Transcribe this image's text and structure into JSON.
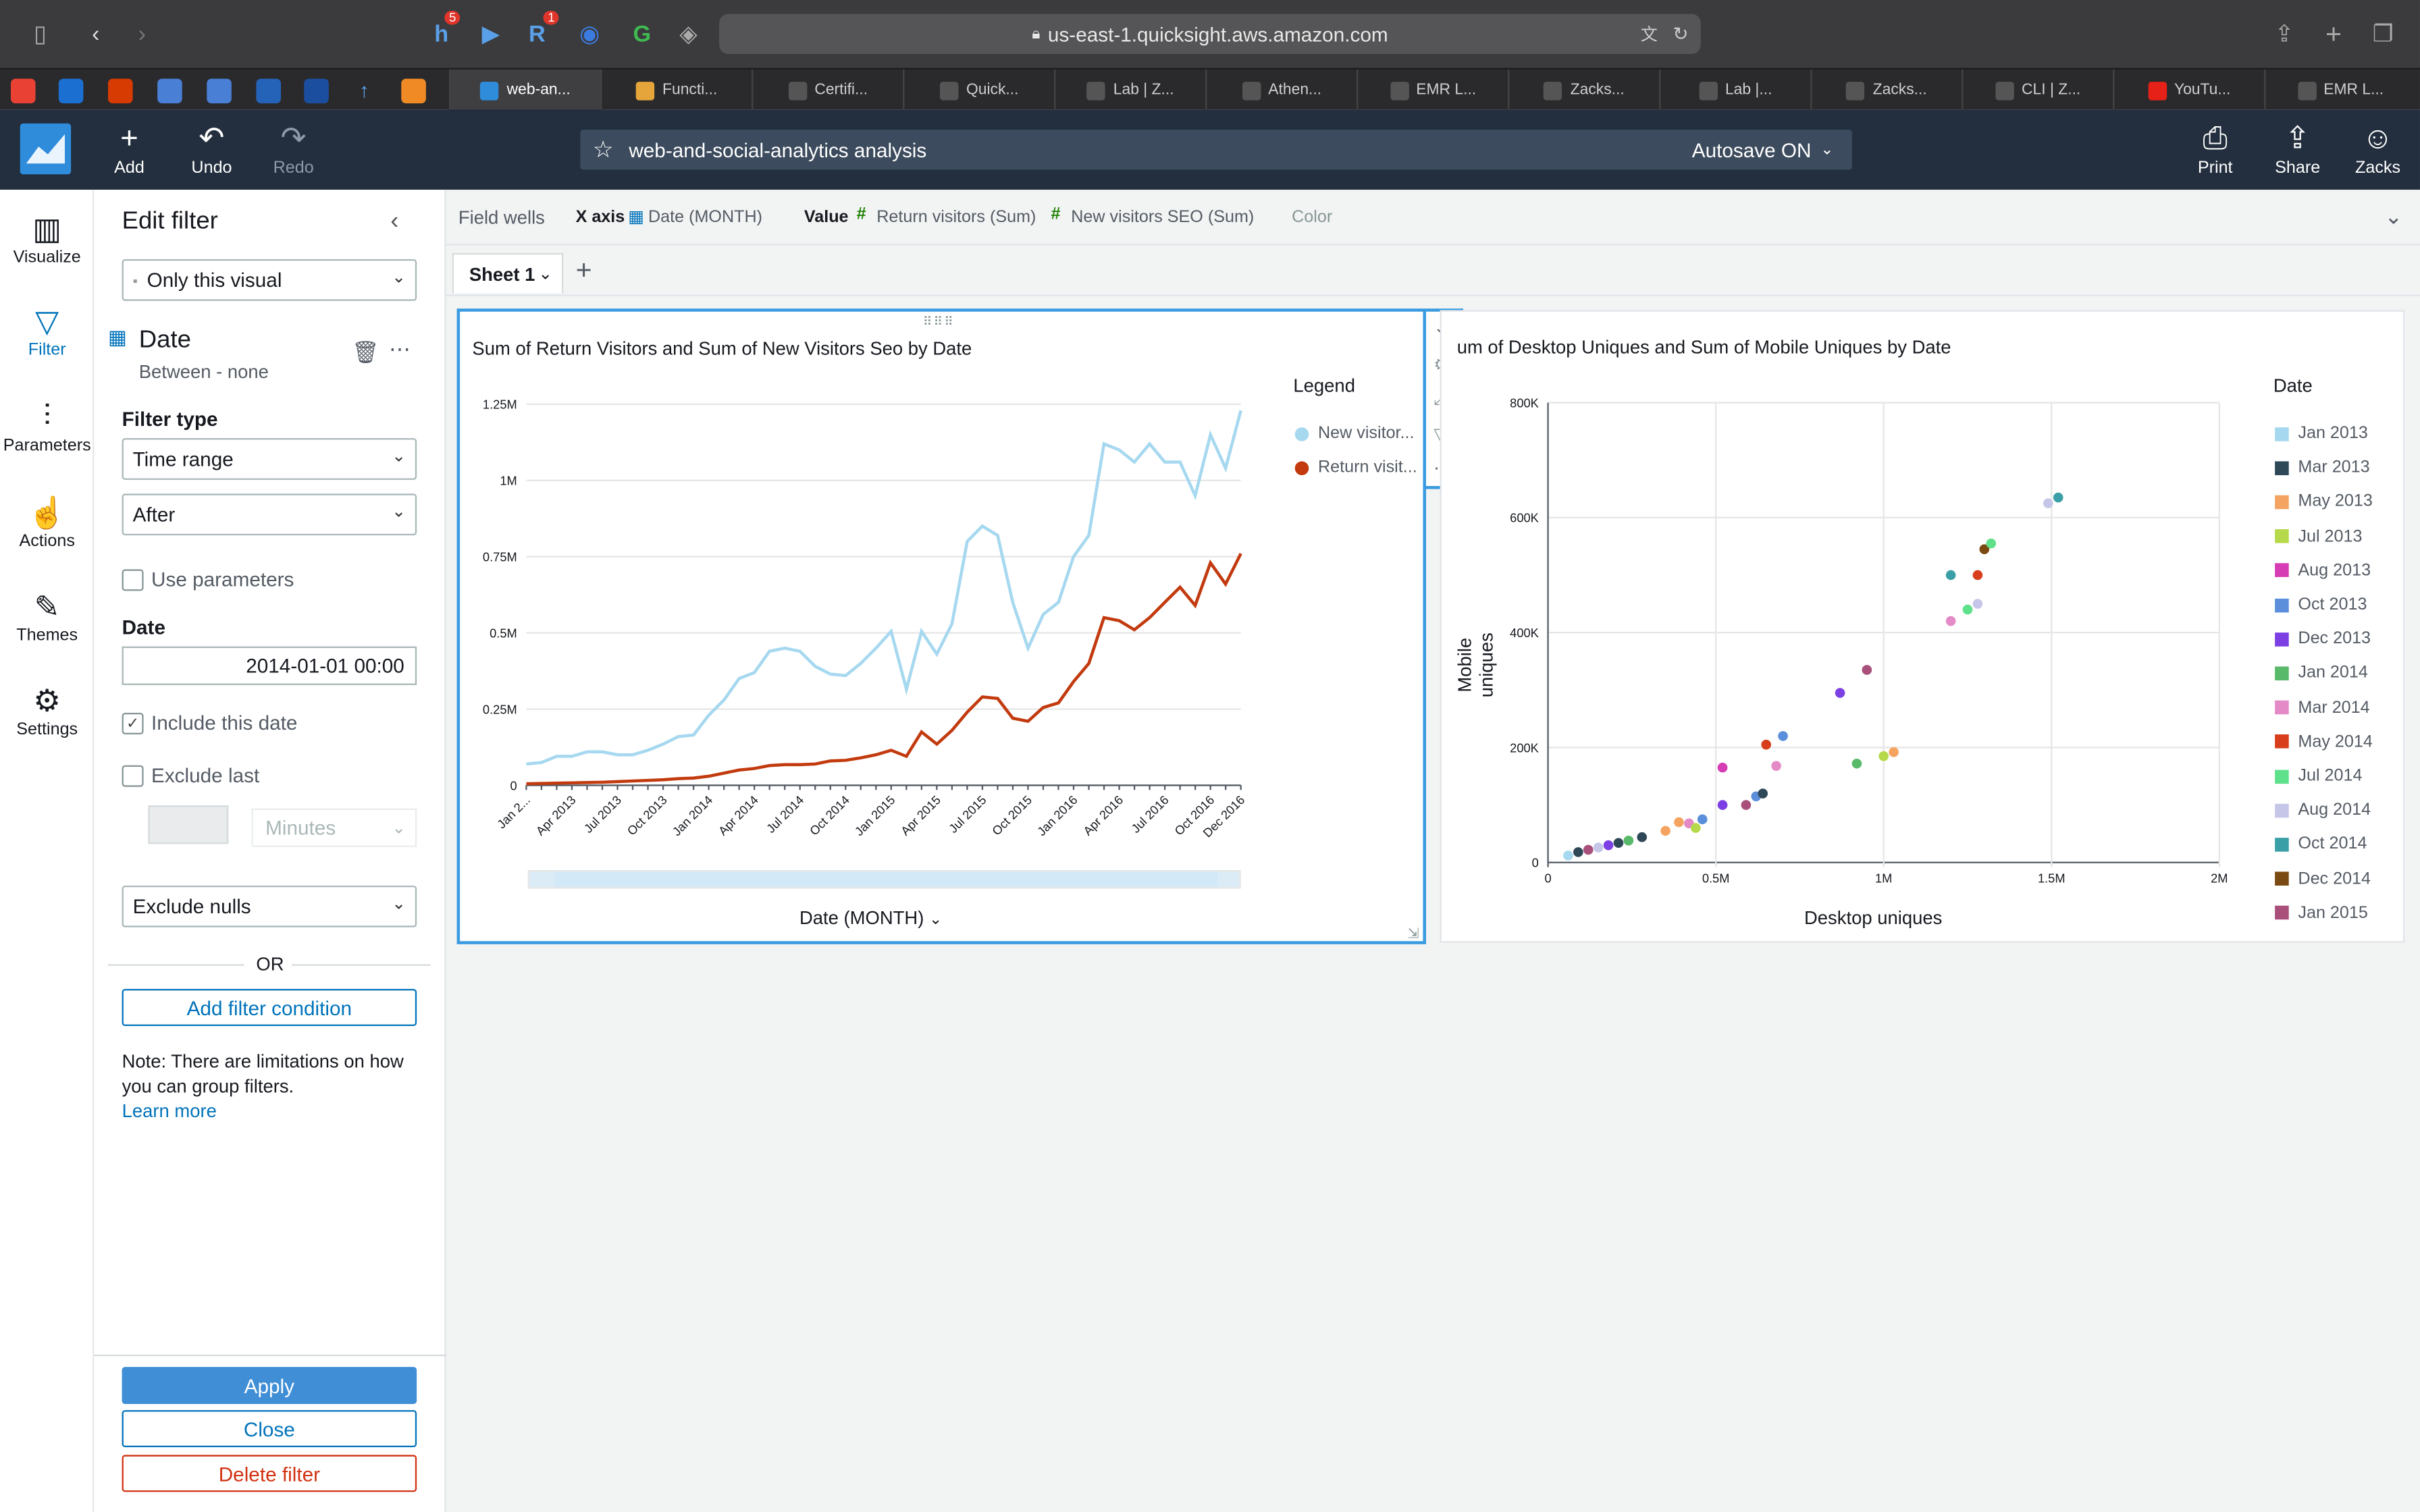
{
  "browser": {
    "url": "us-east-1.quicksight.aws.amazon.com",
    "badges": [
      "5",
      "1"
    ],
    "tabs": [
      "web-an...",
      "Functi...",
      "Certifi...",
      "Quick...",
      "Lab | Z...",
      "Athen...",
      "EMR L...",
      "Zacks...",
      "Lab |...",
      "Zacks...",
      "CLI | Z...",
      "YouTu...",
      "EMR L..."
    ]
  },
  "header": {
    "add": "Add",
    "undo": "Undo",
    "redo": "Redo",
    "title": "web-and-social-analytics analysis",
    "autosave": "Autosave ON",
    "print": "Print",
    "share": "Share",
    "user": "Zacks"
  },
  "rail": [
    "Visualize",
    "Filter",
    "Parameters",
    "Actions",
    "Themes",
    "Settings"
  ],
  "filter": {
    "heading": "Edit filter",
    "scope": "Only this visual",
    "field": "Date",
    "condition": "Between - none",
    "filter_type_label": "Filter type",
    "filter_type": "Time range",
    "operator": "After",
    "use_parameters": "Use parameters",
    "date_label": "Date",
    "date_value": "2014-01-01 00:00",
    "include_date": "Include this date",
    "exclude_last": "Exclude last",
    "unit": "Minutes",
    "nulls": "Exclude nulls",
    "or": "OR",
    "add_condition": "Add filter condition",
    "note": "Note: There are limitations on how you can group filters.",
    "learn_more": "Learn more",
    "apply": "Apply",
    "close": "Close",
    "delete": "Delete filter"
  },
  "wells": {
    "title": "Field wells",
    "x_axis_label": "X axis",
    "x_axis_field": "Date (MONTH)",
    "value_label": "Value",
    "value_1": "Return visitors (Sum)",
    "value_2": "New visitors SEO (Sum)",
    "color_label": "Color"
  },
  "sheet": {
    "tab": "Sheet 1"
  },
  "colors": {
    "light_blue": "#a6d8ef",
    "dark_orange": "#c23a0e",
    "accent": "#0073bb"
  },
  "chart_data": [
    {
      "type": "line",
      "title": "Sum of Return Visitors and Sum of New Visitors Seo by Date",
      "xlabel": "Date (MONTH)",
      "ylabel": "",
      "ylim": [
        0,
        1250000
      ],
      "y_ticks": [
        "0",
        "0.25M",
        "0.5M",
        "0.75M",
        "1M",
        "1.25M"
      ],
      "x_ticks": [
        "Jan 2...",
        "Apr 2013",
        "Jul 2013",
        "Oct 2013",
        "Jan 2014",
        "Apr 2014",
        "Jul 2014",
        "Oct 2014",
        "Jan 2015",
        "Apr 2015",
        "Jul 2015",
        "Oct 2015",
        "Jan 2016",
        "Apr 2016",
        "Jul 2016",
        "Oct 2016",
        "Dec 2016"
      ],
      "legend_title": "Legend",
      "legend_position": "right",
      "series": [
        {
          "name": "New visitor...",
          "color": "#a6d8ef",
          "values": [
            70000,
            75000,
            95000,
            95000,
            110000,
            110000,
            100000,
            100000,
            115000,
            135000,
            160000,
            165000,
            230000,
            280000,
            350000,
            370000,
            440000,
            450000,
            440000,
            390000,
            365000,
            360000,
            400000,
            450000,
            505000,
            315000,
            505000,
            430000,
            530000,
            800000,
            850000,
            820000,
            600000,
            450000,
            560000,
            600000,
            750000,
            820000,
            1120000,
            1100000,
            1060000,
            1120000,
            1060000,
            1060000,
            950000,
            1150000,
            1040000,
            1230000
          ]
        },
        {
          "name": "Return visit...",
          "color": "#c23a0e",
          "values": [
            5000,
            6000,
            7000,
            8000,
            9000,
            10000,
            12000,
            14000,
            16000,
            18000,
            22000,
            24000,
            30000,
            40000,
            50000,
            55000,
            65000,
            68000,
            68000,
            70000,
            80000,
            82000,
            90000,
            100000,
            115000,
            95000,
            175000,
            135000,
            180000,
            240000,
            290000,
            285000,
            220000,
            210000,
            255000,
            270000,
            340000,
            400000,
            550000,
            540000,
            510000,
            550000,
            600000,
            650000,
            590000,
            730000,
            660000,
            760000
          ]
        }
      ]
    },
    {
      "type": "scatter",
      "title": "um of Desktop Uniques and Sum of Mobile Uniques by Date",
      "xlabel": "Desktop uniques",
      "ylabel": "Mobile uniques",
      "xlim": [
        0,
        2000000
      ],
      "ylim": [
        0,
        800000
      ],
      "x_ticks": [
        "0",
        "0.5M",
        "1M",
        "1.5M",
        "2M"
      ],
      "y_ticks": [
        "0",
        "200K",
        "400K",
        "600K",
        "800K"
      ],
      "legend_title": "Date",
      "legend_position": "right",
      "legend": [
        {
          "label": "Jan 2013",
          "color": "#a6d8ef"
        },
        {
          "label": "Mar 2013",
          "color": "#2f4858"
        },
        {
          "label": "May 2013",
          "color": "#f4a460"
        },
        {
          "label": "Jul 2013",
          "color": "#b5d94a"
        },
        {
          "label": "Aug 2013",
          "color": "#d63cb3"
        },
        {
          "label": "Oct 2013",
          "color": "#5b8fdb"
        },
        {
          "label": "Dec 2013",
          "color": "#7b3fe4"
        },
        {
          "label": "Jan 2014",
          "color": "#59b96a"
        },
        {
          "label": "Mar 2014",
          "color": "#e48ac6"
        },
        {
          "label": "May 2014",
          "color": "#d83e1b"
        },
        {
          "label": "Jul 2014",
          "color": "#5fe08a"
        },
        {
          "label": "Aug 2014",
          "color": "#c5c6e8"
        },
        {
          "label": "Oct 2014",
          "color": "#3a9fa6"
        },
        {
          "label": "Dec 2014",
          "color": "#7b4a12"
        },
        {
          "label": "Jan 2015",
          "color": "#a8507a"
        }
      ],
      "points": [
        {
          "x": 60000,
          "y": 12000,
          "color": "#a6d8ef"
        },
        {
          "x": 90000,
          "y": 18000,
          "color": "#2f4858"
        },
        {
          "x": 120000,
          "y": 22000,
          "color": "#a8507a"
        },
        {
          "x": 150000,
          "y": 26000,
          "color": "#c5c6e8"
        },
        {
          "x": 180000,
          "y": 30000,
          "color": "#7b3fe4"
        },
        {
          "x": 210000,
          "y": 34000,
          "color": "#2f4858"
        },
        {
          "x": 240000,
          "y": 38000,
          "color": "#59b96a"
        },
        {
          "x": 280000,
          "y": 44000,
          "color": "#2f4858"
        },
        {
          "x": 350000,
          "y": 55000,
          "color": "#f4a460"
        },
        {
          "x": 390000,
          "y": 70000,
          "color": "#f4a460"
        },
        {
          "x": 420000,
          "y": 68000,
          "color": "#e48ac6"
        },
        {
          "x": 440000,
          "y": 60000,
          "color": "#b5d94a"
        },
        {
          "x": 460000,
          "y": 75000,
          "color": "#5b8fdb"
        },
        {
          "x": 520000,
          "y": 165000,
          "color": "#d63cb3"
        },
        {
          "x": 520000,
          "y": 100000,
          "color": "#7b3fe4"
        },
        {
          "x": 590000,
          "y": 100000,
          "color": "#a8507a"
        },
        {
          "x": 620000,
          "y": 115000,
          "color": "#5b8fdb"
        },
        {
          "x": 640000,
          "y": 120000,
          "color": "#2f4858"
        },
        {
          "x": 650000,
          "y": 205000,
          "color": "#d83e1b"
        },
        {
          "x": 680000,
          "y": 168000,
          "color": "#e48ac6"
        },
        {
          "x": 700000,
          "y": 220000,
          "color": "#5b8fdb"
        },
        {
          "x": 870000,
          "y": 295000,
          "color": "#7b3fe4"
        },
        {
          "x": 920000,
          "y": 172000,
          "color": "#59b96a"
        },
        {
          "x": 950000,
          "y": 335000,
          "color": "#a8507a"
        },
        {
          "x": 1000000,
          "y": 185000,
          "color": "#b5d94a"
        },
        {
          "x": 1030000,
          "y": 192000,
          "color": "#f4a460"
        },
        {
          "x": 1200000,
          "y": 500000,
          "color": "#3a9fa6"
        },
        {
          "x": 1200000,
          "y": 420000,
          "color": "#e48ac6"
        },
        {
          "x": 1250000,
          "y": 440000,
          "color": "#5fe08a"
        },
        {
          "x": 1280000,
          "y": 450000,
          "color": "#c5c6e8"
        },
        {
          "x": 1280000,
          "y": 500000,
          "color": "#d83e1b"
        },
        {
          "x": 1300000,
          "y": 545000,
          "color": "#7b4a12"
        },
        {
          "x": 1320000,
          "y": 555000,
          "color": "#5fe08a"
        },
        {
          "x": 1490000,
          "y": 625000,
          "color": "#c5c6e8"
        },
        {
          "x": 1520000,
          "y": 635000,
          "color": "#3a9fa6"
        }
      ]
    }
  ]
}
